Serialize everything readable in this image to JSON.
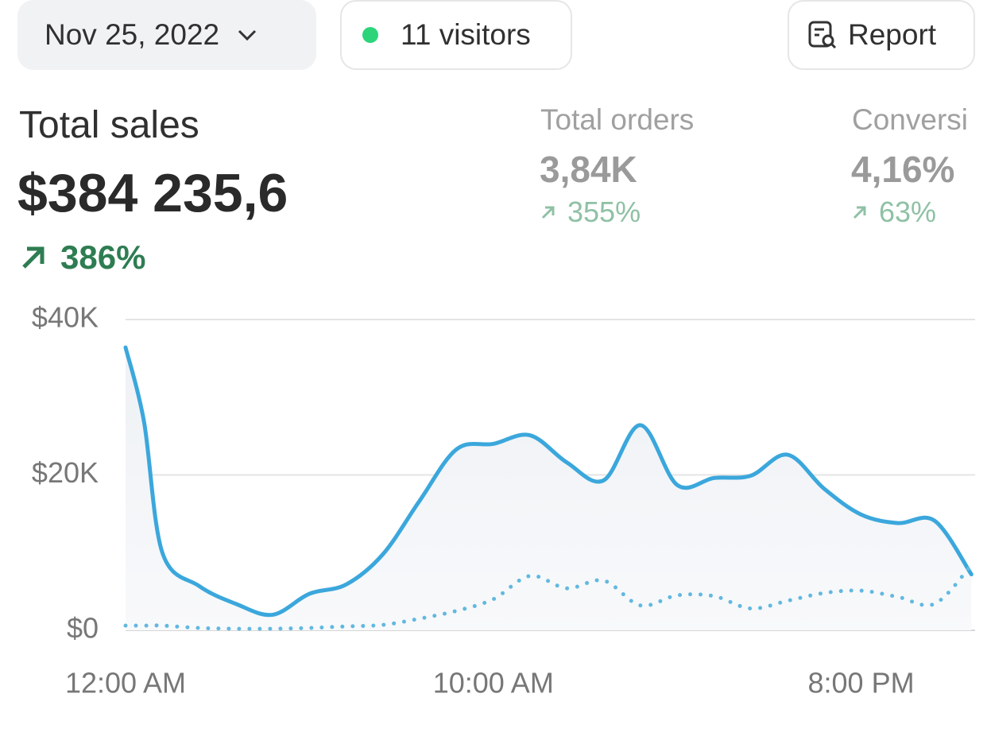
{
  "toolbar": {
    "date": "Nov 25, 2022",
    "visitors": "11 visitors",
    "report": "Report"
  },
  "metrics": [
    {
      "label": "Total sales",
      "value": "$384 235,6",
      "change": "386%"
    },
    {
      "label": "Total orders",
      "value": "3,84K",
      "change": "355%"
    },
    {
      "label": "Conversi",
      "value": "4,16%",
      "change": "63%"
    }
  ],
  "chart_data": {
    "type": "line",
    "x": [
      0,
      0.5,
      1,
      2,
      3,
      4,
      5,
      6,
      7,
      8,
      9,
      10,
      11,
      12,
      13,
      14,
      15,
      16,
      17,
      18,
      19,
      20,
      21,
      22,
      23
    ],
    "xlim": [
      0,
      23.1
    ],
    "xticks": [
      {
        "value": 0,
        "label": "12:00 AM"
      },
      {
        "value": 10,
        "label": "10:00 AM"
      },
      {
        "value": 20,
        "label": "8:00 PM"
      }
    ],
    "ylim": [
      0,
      40000
    ],
    "yticks": [
      {
        "value": 0,
        "label": "$0"
      },
      {
        "value": 20000,
        "label": "$20K"
      },
      {
        "value": 40000,
        "label": "$40K"
      }
    ],
    "grid": true,
    "series": [
      {
        "color": "#3ba7dc",
        "style": "solid",
        "area": true,
        "values": [
          36400,
          26900,
          10000,
          5700,
          3400,
          2000,
          4700,
          5900,
          9800,
          16700,
          23300,
          24000,
          25100,
          21600,
          19300,
          26400,
          18700,
          19600,
          19900,
          22600,
          18200,
          14900,
          13800,
          14100,
          7200
        ]
      },
      {
        "color": "#62b8e0",
        "style": "dotted",
        "area": false,
        "values": [
          600,
          600,
          600,
          300,
          200,
          200,
          300,
          500,
          700,
          1500,
          2500,
          4000,
          7000,
          5400,
          6400,
          3200,
          4500,
          4400,
          2800,
          3800,
          4800,
          5100,
          4300,
          3400,
          8400
        ]
      }
    ]
  }
}
